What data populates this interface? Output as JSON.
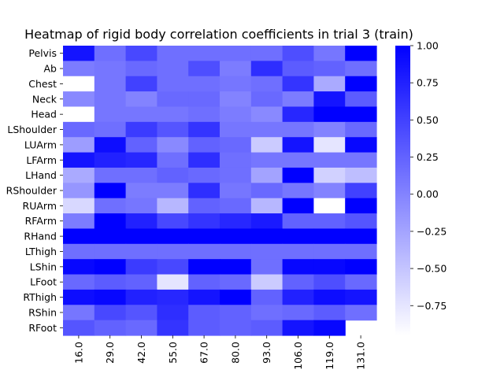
{
  "chart_data": {
    "type": "heatmap",
    "title": "Heatmap of rigid body correlation coefficients in trial 3 (train)",
    "xlabel": "",
    "ylabel": "",
    "x_categories": [
      "16.0",
      "29.0",
      "42.0",
      "55.0",
      "67.0",
      "80.0",
      "93.0",
      "106.0",
      "119.0",
      "131.0"
    ],
    "y_categories": [
      "Pelvis",
      "Ab",
      "Chest",
      "Neck",
      "Head",
      "LShoulder",
      "LUArm",
      "LFArm",
      "LHand",
      "RShoulder",
      "RUArm",
      "RFArm",
      "RHand",
      "LThigh",
      "LShin",
      "LFoot",
      "RThigh",
      "RShin",
      "RFoot"
    ],
    "values": [
      [
        0.85,
        0.15,
        0.45,
        0.15,
        0.15,
        0.15,
        0.15,
        0.4,
        0.1,
        1.0
      ],
      [
        0.05,
        0.1,
        0.2,
        0.15,
        0.4,
        0.05,
        0.65,
        0.3,
        0.25,
        0.15
      ],
      [
        -0.95,
        0.1,
        0.5,
        0.15,
        0.15,
        0.1,
        0.15,
        0.6,
        -0.3,
        1.0
      ],
      [
        -0.05,
        0.1,
        0.0,
        0.2,
        0.2,
        0.0,
        0.2,
        0.05,
        0.85,
        0.3
      ],
      [
        -0.95,
        0.1,
        0.1,
        0.1,
        0.15,
        0.05,
        -0.05,
        0.7,
        1.0,
        1.0
      ],
      [
        0.2,
        0.15,
        0.55,
        0.35,
        0.6,
        0.1,
        0.1,
        0.1,
        0.0,
        0.2
      ],
      [
        -0.2,
        0.9,
        0.25,
        -0.05,
        0.25,
        0.2,
        -0.55,
        0.85,
        -0.75,
        0.95
      ],
      [
        0.85,
        0.75,
        0.7,
        0.15,
        0.65,
        0.15,
        0.1,
        0.1,
        0.1,
        0.1
      ],
      [
        -0.3,
        0.15,
        0.15,
        0.25,
        0.2,
        0.15,
        -0.25,
        1.0,
        -0.6,
        -0.45
      ],
      [
        -0.15,
        1.0,
        0.05,
        0.05,
        0.65,
        0.1,
        0.2,
        0.1,
        0.0,
        0.5
      ],
      [
        -0.65,
        0.15,
        0.1,
        -0.4,
        0.25,
        0.2,
        -0.4,
        1.0,
        -1.0,
        1.0
      ],
      [
        0.05,
        1.0,
        0.75,
        0.45,
        0.6,
        0.7,
        0.8,
        0.25,
        0.25,
        0.35
      ],
      [
        1.0,
        1.0,
        1.0,
        1.0,
        1.0,
        1.0,
        1.0,
        1.0,
        1.0,
        1.0
      ],
      [
        0.15,
        0.15,
        0.15,
        0.15,
        0.15,
        0.15,
        0.15,
        0.15,
        0.15,
        0.15
      ],
      [
        0.95,
        1.0,
        0.55,
        0.45,
        1.0,
        1.0,
        0.15,
        0.95,
        0.95,
        1.0
      ],
      [
        0.2,
        0.3,
        0.25,
        -0.75,
        0.25,
        0.2,
        -0.55,
        0.25,
        0.4,
        0.2
      ],
      [
        0.9,
        0.95,
        0.75,
        0.7,
        0.85,
        1.0,
        0.25,
        0.75,
        0.9,
        0.85
      ],
      [
        0.1,
        0.45,
        0.35,
        0.65,
        0.3,
        0.25,
        0.15,
        0.2,
        0.3,
        0.15
      ],
      [
        0.35,
        0.25,
        0.2,
        0.6,
        0.3,
        0.25,
        0.3,
        0.85,
        0.95,
        null
      ]
    ],
    "colorbar": {
      "range": [
        -0.95,
        1.0
      ],
      "ticks": [
        1.0,
        0.75,
        0.5,
        0.25,
        0.0,
        -0.25,
        -0.5,
        -0.75
      ],
      "tick_labels": [
        "1.00",
        "0.75",
        "0.50",
        "0.25",
        "0.00",
        "−0.25",
        "−0.50",
        "−0.75"
      ],
      "colormap": [
        "#ffffff",
        "#0000ff"
      ]
    },
    "grid": false
  }
}
